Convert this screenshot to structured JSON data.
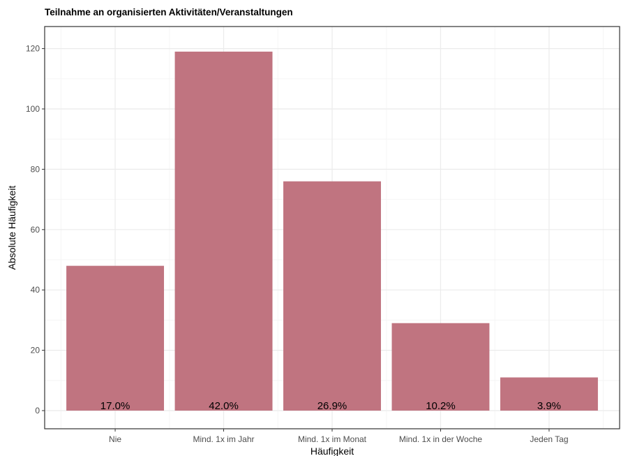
{
  "chart_data": {
    "type": "bar",
    "title": "Teilnahme an organisierten Aktivitäten/Veranstaltungen",
    "xlabel": "Häufigkeit",
    "ylabel": "Absolute Häufigkeit",
    "categories": [
      "Nie",
      "Mind. 1x im Jahr",
      "Mind. 1x im Monat",
      "Mind. 1x in der Woche",
      "Jeden Tag"
    ],
    "values": [
      48,
      119,
      76,
      29,
      11
    ],
    "data_labels": [
      "17.0%",
      "42.0%",
      "26.9%",
      "10.2%",
      "3.9%"
    ],
    "ylim": [
      0,
      125
    ],
    "yticks": [
      0,
      20,
      40,
      60,
      80,
      100,
      120
    ],
    "grid": true,
    "legend": "none",
    "colors": {
      "bar": "#c07480",
      "grid_major": "#ebebeb",
      "grid_minor": "#f5f5f5",
      "panel_border": "#333333",
      "tick_text": "#4d4d4d"
    }
  }
}
